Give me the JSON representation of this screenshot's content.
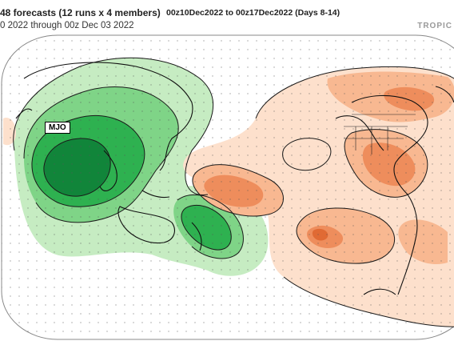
{
  "header": {
    "title_left": "48 forecasts (12 runs x 4 members)",
    "period": "00z10Dec2022 to 00z17Dec2022 (Days 8-14)",
    "init_range": "0 2022 through 00z Dec 03 2022",
    "brand": "TROPIC"
  },
  "map": {
    "annotation_label": "MJO",
    "colors": {
      "ocean": "#ffffff",
      "land_outline": "#111111",
      "green_light": "#c6ecc2",
      "green_mid": "#7fd487",
      "green_strong": "#2eb150",
      "green_dark": "#11853a",
      "orange_light": "#fde0cc",
      "orange_mid": "#f8b891",
      "orange_strong": "#ee8d5c",
      "orange_dark": "#e06a34"
    }
  }
}
